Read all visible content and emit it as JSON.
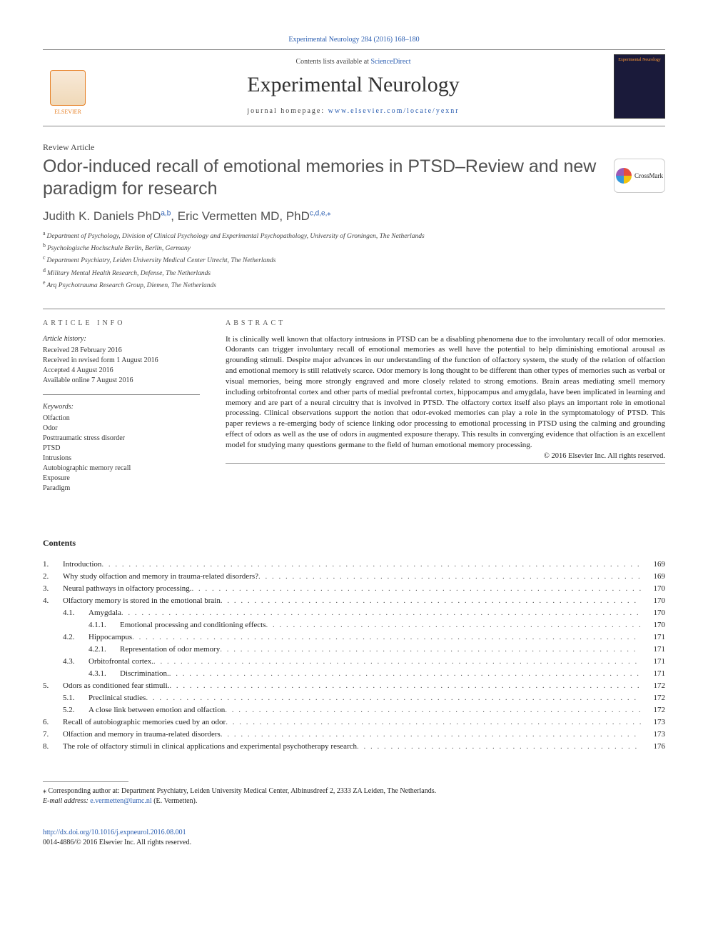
{
  "citation": "Experimental Neurology 284 (2016) 168–180",
  "header": {
    "contents_prefix": "Contents lists available at ",
    "contents_link": "ScienceDirect",
    "journal_name": "Experimental Neurology",
    "homepage_prefix": "journal homepage: ",
    "homepage_url": "www.elsevier.com/locate/yexnr",
    "publisher_logo_text": "ELSEVIER",
    "cover_text": "Experimental Neurology"
  },
  "article_type": "Review Article",
  "title": "Odor-induced recall of emotional memories in PTSD–Review and new paradigm for research",
  "crossmark_label": "CrossMark",
  "authors_html": "Judith K. Daniels PhD",
  "author1_sup": "a,b",
  "author2": ", Eric Vermetten MD, PhD",
  "author2_sup": "c,d,e,",
  "corr_mark": "⁎",
  "affiliations": [
    {
      "key": "a",
      "text": "Department of Psychology, Division of Clinical Psychology and Experimental Psychopathology, University of Groningen, The Netherlands"
    },
    {
      "key": "b",
      "text": "Psychologische Hochschule Berlin, Berlin, Germany"
    },
    {
      "key": "c",
      "text": "Department Psychiatry, Leiden University Medical Center Utrecht, The Netherlands"
    },
    {
      "key": "d",
      "text": "Military Mental Health Research, Defense, The Netherlands"
    },
    {
      "key": "e",
      "text": "Arq Psychotrauma Research Group, Diemen, The Netherlands"
    }
  ],
  "info": {
    "heading": "article info",
    "history_label": "Article history:",
    "history": [
      "Received 28 February 2016",
      "Received in revised form 1 August 2016",
      "Accepted 4 August 2016",
      "Available online 7 August 2016"
    ],
    "keywords_label": "Keywords:",
    "keywords": [
      "Olfaction",
      "Odor",
      "Posttraumatic stress disorder",
      "PTSD",
      "Intrusions",
      "Autobiographic memory recall",
      "Exposure",
      "Paradigm"
    ]
  },
  "abstract": {
    "heading": "abstract",
    "text": "It is clinically well known that olfactory intrusions in PTSD can be a disabling phenomena due to the involuntary recall of odor memories. Odorants can trigger involuntary recall of emotional memories as well have the potential to help diminishing emotional arousal as grounding stimuli. Despite major advances in our understanding of the function of olfactory system, the study of the relation of olfaction and emotional memory is still relatively scarce. Odor memory is long thought to be different than other types of memories such as verbal or visual memories, being more strongly engraved and more closely related to strong emotions. Brain areas mediating smell memory including orbitofrontal cortex and other parts of medial prefrontal cortex, hippocampus and amygdala, have been implicated in learning and memory and are part of a neural circuitry that is involved in PTSD. The olfactory cortex itself also plays an important role in emotional processing. Clinical observations support the notion that odor-evoked memories can play a role in the symptomatology of PTSD. This paper reviews a re-emerging body of science linking odor processing to emotional processing in PTSD using the calming and grounding effect of odors as well as the use of odors in augmented exposure therapy. This results in converging evidence that olfaction is an excellent model for studying many questions germane to the field of human emotional memory processing.",
    "copyright": "© 2016 Elsevier Inc. All rights reserved."
  },
  "contents": {
    "heading": "Contents",
    "items": [
      {
        "level": 0,
        "num": "1.",
        "label": "Introduction",
        "page": "169"
      },
      {
        "level": 0,
        "num": "2.",
        "label": "Why study olfaction and memory in trauma-related disorders?",
        "page": "169"
      },
      {
        "level": 0,
        "num": "3.",
        "label": "Neural pathways in olfactory processing.",
        "page": "170"
      },
      {
        "level": 0,
        "num": "4.",
        "label": "Olfactory memory is stored in the emotional brain",
        "page": "170"
      },
      {
        "level": 1,
        "num": "4.1.",
        "label": "Amygdala",
        "page": "170"
      },
      {
        "level": 2,
        "num": "4.1.1.",
        "label": "Emotional processing and conditioning effects",
        "page": "170"
      },
      {
        "level": 1,
        "num": "4.2.",
        "label": "Hippocampus",
        "page": "171"
      },
      {
        "level": 2,
        "num": "4.2.1.",
        "label": "Representation of odor memory",
        "page": "171"
      },
      {
        "level": 1,
        "num": "4.3.",
        "label": "Orbitofrontal cortex.",
        "page": "171"
      },
      {
        "level": 2,
        "num": "4.3.1.",
        "label": "Discrimination.",
        "page": "171"
      },
      {
        "level": 0,
        "num": "5.",
        "label": "Odors as conditioned fear stimuli.",
        "page": "172"
      },
      {
        "level": 1,
        "num": "5.1.",
        "label": "Preclinical studies",
        "page": "172"
      },
      {
        "level": 1,
        "num": "5.2.",
        "label": "A close link between emotion and olfaction",
        "page": "172"
      },
      {
        "level": 0,
        "num": "6.",
        "label": "Recall of autobiographic memories cued by an odor",
        "page": "173"
      },
      {
        "level": 0,
        "num": "7.",
        "label": "Olfaction and memory in trauma-related disorders",
        "page": "173"
      },
      {
        "level": 0,
        "num": "8.",
        "label": "The role of olfactory stimuli in clinical applications and experimental psychotherapy research",
        "page": "176"
      }
    ]
  },
  "footnote": {
    "mark": "⁎",
    "text": "Corresponding author at: Department Psychiatry, Leiden University Medical Center, Albinusdreef 2, 2333 ZA Leiden, The Netherlands.",
    "email_label": "E-mail address:",
    "email": "e.vermetten@lumc.nl",
    "email_suffix": " (E. Vermetten)."
  },
  "bottom": {
    "doi": "http://dx.doi.org/10.1016/j.expneurol.2016.08.001",
    "issn_line": "0014-4886/© 2016 Elsevier Inc. All rights reserved."
  },
  "colors": {
    "link": "#2a5db0",
    "text": "#222222",
    "rule": "#888888",
    "elsevier": "#e67e22"
  }
}
